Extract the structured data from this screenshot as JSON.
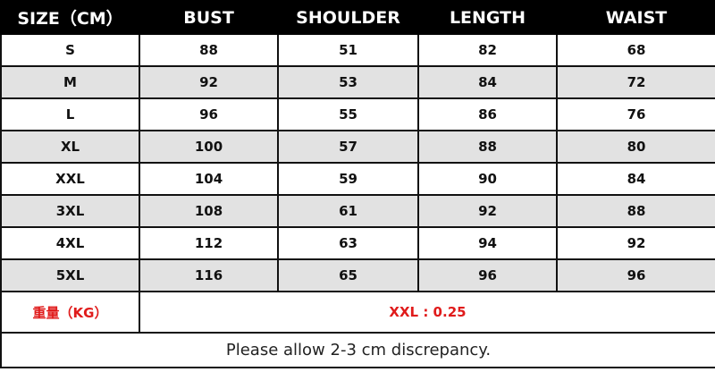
{
  "headers": [
    "SIZE（CM）",
    "BUST",
    "SHOULDER",
    "LENGTH",
    "WAIST"
  ],
  "rows": [
    [
      "S",
      "88",
      "51",
      "82",
      "68"
    ],
    [
      "M",
      "92",
      "53",
      "84",
      "72"
    ],
    [
      "L",
      "96",
      "55",
      "86",
      "76"
    ],
    [
      "XL",
      "100",
      "57",
      "88",
      "80"
    ],
    [
      "XXL",
      "104",
      "59",
      "90",
      "84"
    ],
    [
      "3XL",
      "108",
      "61",
      "92",
      "88"
    ],
    [
      "4XL",
      "112",
      "63",
      "94",
      "92"
    ],
    [
      "5XL",
      "116",
      "65",
      "96",
      "96"
    ]
  ],
  "weight": {
    "label": "重量（KG）",
    "value": "XXL : 0.25"
  },
  "note": "Please allow 2-3 cm discrepancy.",
  "colors": {
    "header_bg": "#000000",
    "alt_row_bg": "#e2e2e2",
    "weight_text": "#e01b1b"
  }
}
